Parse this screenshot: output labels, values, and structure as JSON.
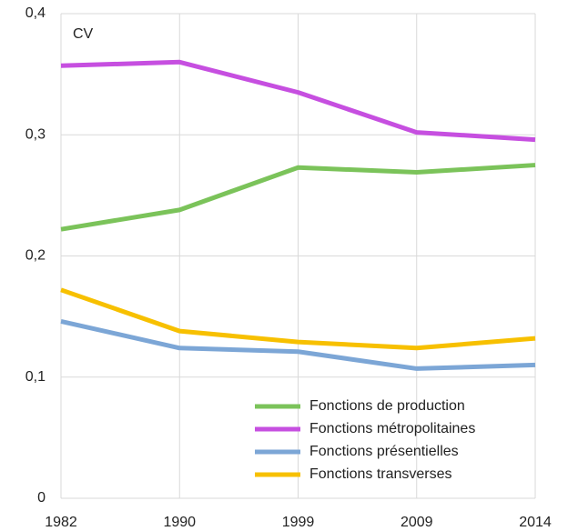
{
  "chart_data": {
    "type": "line",
    "annotation": "CV",
    "categories": [
      "1982",
      "1990",
      "1999",
      "2009",
      "2014"
    ],
    "series": [
      {
        "name": "Fonctions de production",
        "color": "#7bc35a",
        "values": [
          0.222,
          0.238,
          0.273,
          0.269,
          0.275
        ]
      },
      {
        "name": "Fonctions métropolitaines",
        "color": "#c64fe0",
        "values": [
          0.357,
          0.36,
          0.335,
          0.302,
          0.296
        ]
      },
      {
        "name": "Fonctions présentielles",
        "color": "#7ca6d6",
        "values": [
          0.146,
          0.124,
          0.121,
          0.107,
          0.11
        ]
      },
      {
        "name": "Fonctions transverses",
        "color": "#f7c000",
        "values": [
          0.172,
          0.138,
          0.129,
          0.124,
          0.132
        ]
      }
    ],
    "ylim": [
      0,
      0.4
    ],
    "yticks": [
      0,
      {
        "value": 0.1,
        "label": "0,1"
      },
      {
        "value": 0.2,
        "label": "0,2"
      },
      {
        "value": 0.3,
        "label": "0,3"
      },
      {
        "value": 0.4,
        "label": "0,4"
      }
    ],
    "grid": true,
    "legend": "lower right"
  }
}
